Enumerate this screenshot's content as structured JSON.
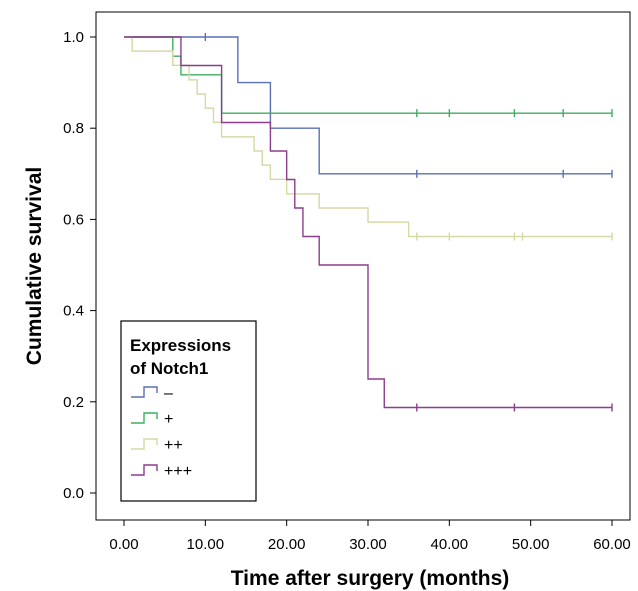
{
  "chart_data": {
    "type": "line",
    "subtype": "kaplan-meier-step",
    "title": "",
    "xlabel": "Time after surgery (months)",
    "ylabel": "Cumulative survival",
    "xlim": [
      0,
      60
    ],
    "ylim": [
      0,
      1
    ],
    "x_ticks": [
      0,
      10,
      20,
      30,
      40,
      50,
      60
    ],
    "x_tick_labels": [
      "0.00",
      "10.00",
      "20.00",
      "30.00",
      "40.00",
      "50.00",
      "60.00"
    ],
    "y_ticks": [
      0,
      0.2,
      0.4,
      0.6,
      0.8,
      1.0
    ],
    "y_tick_labels": [
      "0.0",
      "0.2",
      "0.4",
      "0.6",
      "0.8",
      "1.0"
    ],
    "grid": false,
    "legend": {
      "title_lines": [
        "Expressions",
        "of Notch1"
      ],
      "position": "bottom-left"
    },
    "series": [
      {
        "name": "–",
        "color": "#5b6fb5",
        "x": [
          0,
          14,
          18,
          24,
          60
        ],
        "y": [
          1.0,
          0.9,
          0.8,
          0.7,
          0.7
        ],
        "censored": [
          [
            10,
            1.0
          ],
          [
            36,
            0.7
          ],
          [
            54,
            0.7
          ],
          [
            60,
            0.7
          ]
        ]
      },
      {
        "name": "+",
        "color": "#3fae5f",
        "x": [
          0,
          6,
          7,
          12,
          60
        ],
        "y": [
          1.0,
          0.958,
          0.917,
          0.833,
          0.833
        ],
        "censored": [
          [
            36,
            0.833
          ],
          [
            40,
            0.833
          ],
          [
            48,
            0.833
          ],
          [
            54,
            0.833
          ],
          [
            60,
            0.833
          ]
        ]
      },
      {
        "name": "++",
        "color": "#d6d9a6",
        "x": [
          0,
          1,
          6,
          8,
          9,
          10,
          11,
          12,
          16,
          17,
          18,
          20,
          24,
          30,
          35,
          60
        ],
        "y": [
          1.0,
          0.969,
          0.938,
          0.906,
          0.875,
          0.844,
          0.813,
          0.781,
          0.75,
          0.719,
          0.688,
          0.656,
          0.625,
          0.594,
          0.5625,
          0.5625
        ],
        "censored": [
          [
            36,
            0.5625
          ],
          [
            40,
            0.5625
          ],
          [
            48,
            0.5625
          ],
          [
            49,
            0.5625
          ],
          [
            60,
            0.5625
          ]
        ]
      },
      {
        "name": "+++",
        "color": "#8c3d8c",
        "x": [
          0,
          7,
          12,
          18,
          20,
          21,
          22,
          24,
          30,
          32,
          60
        ],
        "y": [
          1.0,
          0.9375,
          0.8125,
          0.75,
          0.6875,
          0.625,
          0.5625,
          0.5,
          0.25,
          0.1875,
          0.1875
        ],
        "censored": [
          [
            36,
            0.1875
          ],
          [
            48,
            0.1875
          ],
          [
            60,
            0.1875
          ]
        ]
      }
    ]
  }
}
